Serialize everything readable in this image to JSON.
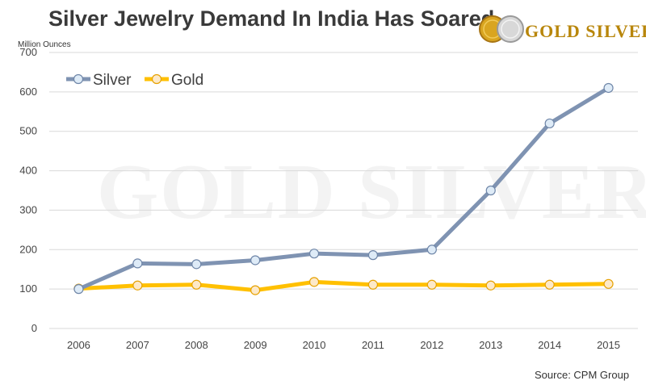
{
  "header": {
    "title": "Silver Jewelry Demand In India Has Soared",
    "logo_text": "GOLD SILVER",
    "watermark": "GOLD SILVER"
  },
  "source": "Source: CPM Group",
  "colors": {
    "silver": "#7f93b2",
    "gold": "#ffc000",
    "grid": "#d9d9d9",
    "marker_fill_silver": "#deebf7",
    "marker_fill_gold": "#fde9c8"
  },
  "chart_data": {
    "type": "line",
    "title": "Silver Jewelry Demand In India Has Soared",
    "ylabel": "Million Ounces",
    "xlabel": "",
    "categories": [
      "2006",
      "2007",
      "2008",
      "2009",
      "2010",
      "2011",
      "2012",
      "2013",
      "2014",
      "2015"
    ],
    "ylim": [
      0,
      700
    ],
    "yticks": [
      "0",
      "100",
      "200",
      "300",
      "400",
      "500",
      "600",
      "700"
    ],
    "grid": true,
    "legend": "top-left",
    "series": [
      {
        "name": "Silver",
        "values": [
          100,
          165,
          163,
          173,
          190,
          186,
          200,
          350,
          520,
          610
        ]
      },
      {
        "name": "Gold",
        "values": [
          101,
          109,
          111,
          97,
          118,
          111,
          111,
          109,
          111,
          113
        ]
      }
    ]
  }
}
